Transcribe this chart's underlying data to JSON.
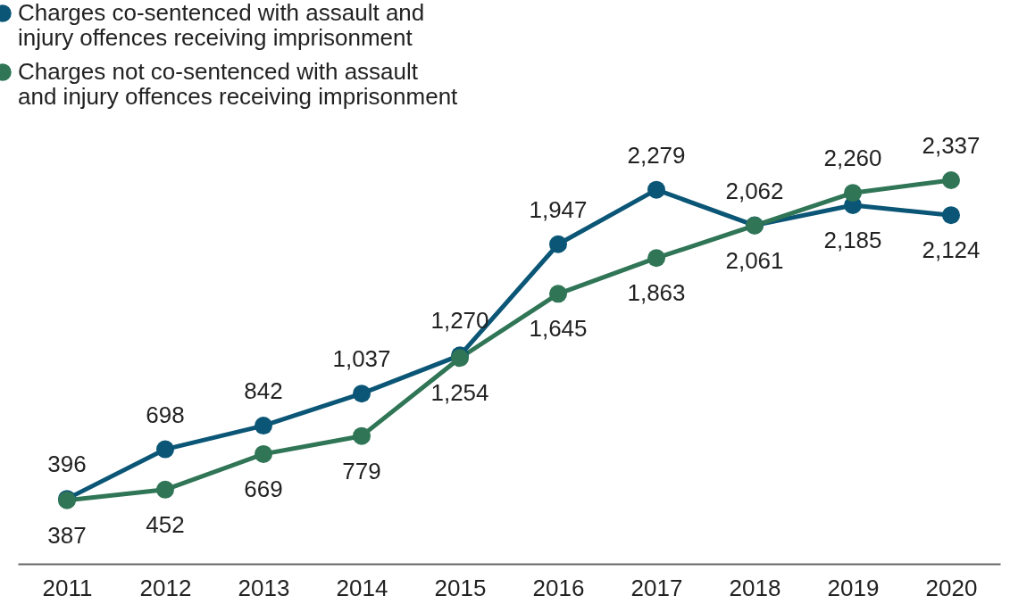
{
  "chart_data": {
    "type": "line",
    "categories": [
      "2011",
      "2012",
      "2013",
      "2014",
      "2015",
      "2016",
      "2017",
      "2018",
      "2019",
      "2020"
    ],
    "series": [
      {
        "name": "Charges co-sentenced with assault and injury offences receiving imprisonment",
        "color": "#0b5676",
        "values": [
          396,
          698,
          842,
          1037,
          1270,
          1947,
          2279,
          2062,
          2185,
          2124
        ],
        "value_labels": [
          "396",
          "698",
          "842",
          "1,037",
          "1,270",
          "1,947",
          "2,279",
          "2,062",
          "2,185",
          "2,124"
        ]
      },
      {
        "name": "Charges not co-sentenced with assault and injury offences receiving imprisonment",
        "color": "#2f7556",
        "values": [
          387,
          452,
          669,
          779,
          1254,
          1645,
          1863,
          2061,
          2260,
          2337
        ],
        "value_labels": [
          "387",
          "452",
          "669",
          "779",
          "1,254",
          "1,645",
          "1,863",
          "2,061",
          "2,260",
          "2,337"
        ]
      }
    ],
    "marker": "circle",
    "grid": false,
    "legend": "top left"
  }
}
